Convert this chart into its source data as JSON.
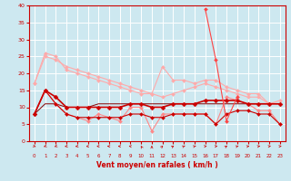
{
  "title": "",
  "xlabel": "Vent moyen/en rafales ( km/h )",
  "xlim": [
    -0.5,
    23.5
  ],
  "ylim": [
    0,
    40
  ],
  "yticks": [
    0,
    5,
    10,
    15,
    20,
    25,
    30,
    35,
    40
  ],
  "xticks": [
    0,
    1,
    2,
    3,
    4,
    5,
    6,
    7,
    8,
    9,
    10,
    11,
    12,
    13,
    14,
    15,
    16,
    17,
    18,
    19,
    20,
    21,
    22,
    23
  ],
  "background_color": "#cde8f0",
  "grid_color": "#ffffff",
  "series": [
    {
      "color": "#ffaaaa",
      "linewidth": 0.8,
      "marker": "D",
      "markersize": 2,
      "values": [
        17,
        26,
        25,
        21,
        20,
        19,
        18,
        17,
        16,
        15,
        14,
        14,
        22,
        18,
        18,
        17,
        18,
        18,
        16,
        15,
        14,
        14,
        11,
        12
      ]
    },
    {
      "color": "#ffaaaa",
      "linewidth": 0.8,
      "marker": "D",
      "markersize": 2,
      "values": [
        17,
        25,
        24,
        22,
        21,
        20,
        19,
        18,
        17,
        16,
        15,
        14,
        13,
        14,
        15,
        16,
        17,
        16,
        15,
        14,
        13,
        13,
        11,
        11
      ]
    },
    {
      "color": "#ff8888",
      "linewidth": 0.8,
      "marker": "D",
      "markersize": 2,
      "values": [
        8,
        15,
        11,
        8,
        7,
        6,
        8,
        7,
        6,
        10,
        10,
        3,
        8,
        8,
        8,
        8,
        8,
        5,
        13,
        12,
        11,
        9,
        9,
        5
      ]
    },
    {
      "color": "#cc0000",
      "linewidth": 1.2,
      "marker": "D",
      "markersize": 2.5,
      "values": [
        8,
        15,
        13,
        10,
        10,
        10,
        10,
        10,
        10,
        11,
        11,
        10,
        10,
        11,
        11,
        11,
        12,
        12,
        12,
        12,
        11,
        11,
        11,
        11
      ]
    },
    {
      "color": "#cc0000",
      "linewidth": 0.8,
      "marker": "D",
      "markersize": 2,
      "values": [
        8,
        15,
        11,
        8,
        7,
        7,
        7,
        7,
        7,
        8,
        8,
        7,
        7,
        8,
        8,
        8,
        8,
        5,
        8,
        9,
        9,
        8,
        8,
        5
      ]
    },
    {
      "color": "#880000",
      "linewidth": 0.7,
      "marker": null,
      "markersize": 0,
      "values": [
        8,
        11,
        11,
        10,
        10,
        10,
        11,
        11,
        11,
        11,
        11,
        11,
        11,
        11,
        11,
        11,
        11,
        11,
        11,
        11,
        11,
        11,
        11,
        11
      ]
    },
    {
      "color": "#ff4444",
      "linewidth": 0.8,
      "marker": "D",
      "markersize": 2,
      "values": [
        null,
        null,
        null,
        null,
        null,
        null,
        null,
        null,
        null,
        null,
        null,
        null,
        null,
        null,
        null,
        null,
        39,
        24,
        6,
        13,
        null,
        null,
        null,
        null
      ]
    }
  ],
  "arrow_angles_deg": [
    45,
    315,
    315,
    300,
    300,
    290,
    280,
    270,
    270,
    250,
    190,
    180,
    160,
    150,
    140,
    130,
    110,
    110,
    150,
    135,
    125,
    120,
    110,
    105
  ]
}
